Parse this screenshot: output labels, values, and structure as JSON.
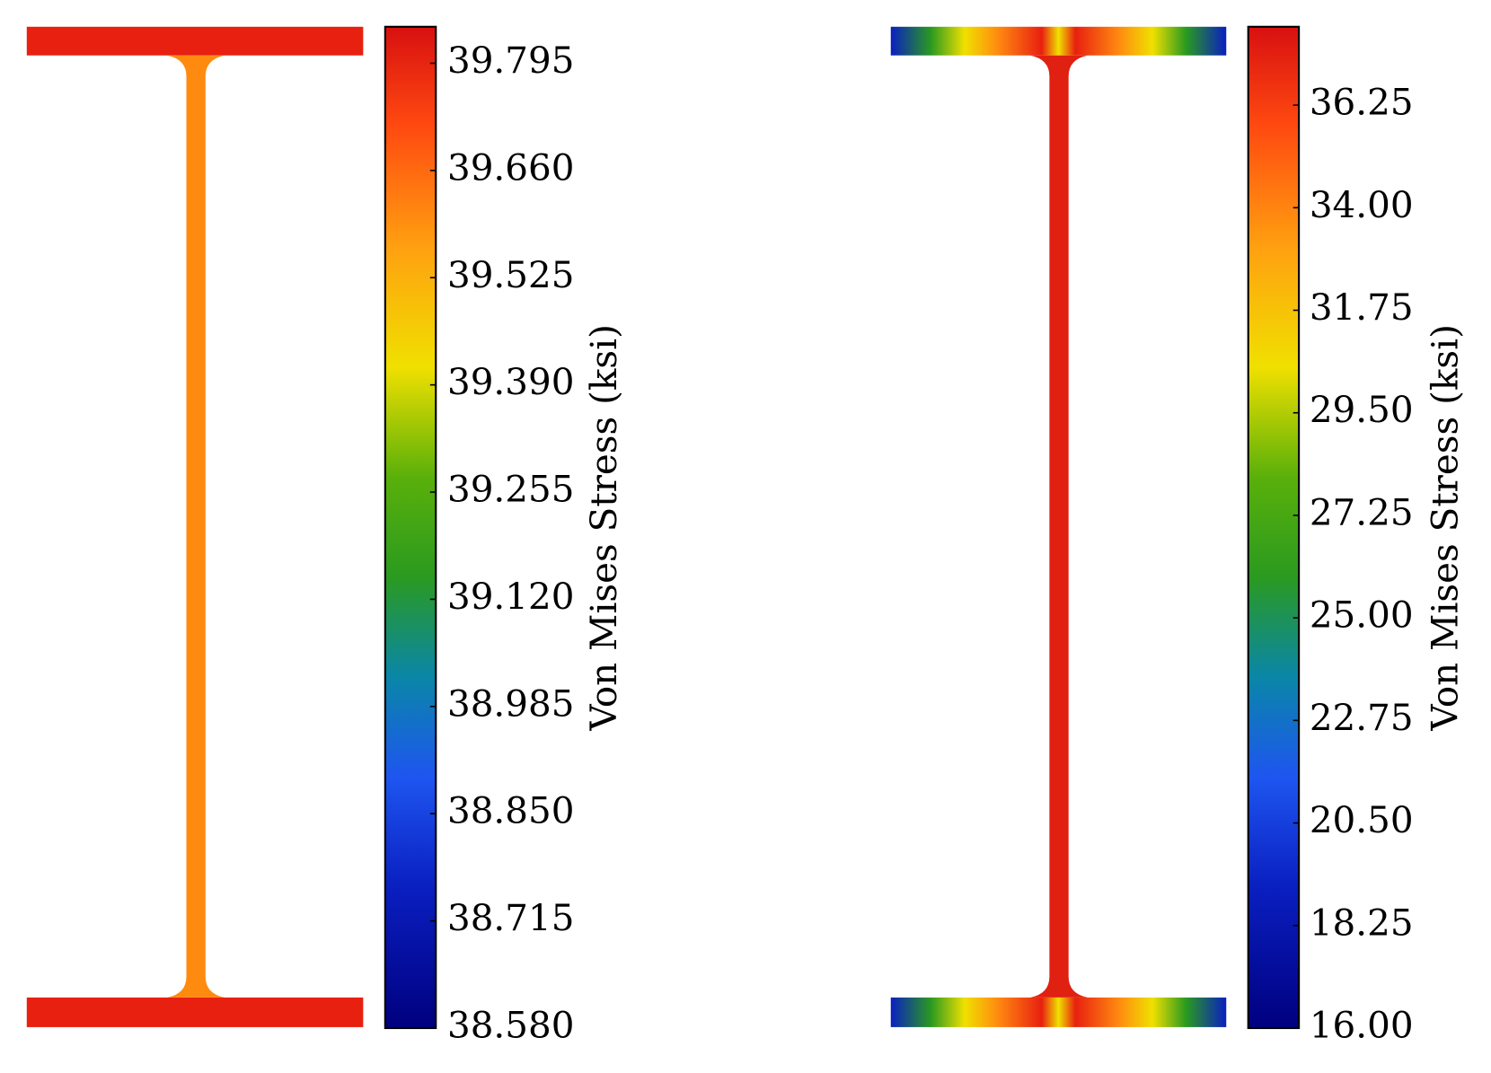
{
  "chart_data": [
    {
      "type": "contour",
      "colorbar_label": "Von Mises Stress (ksi)",
      "clim": [
        38.58,
        39.841
      ],
      "cticks": [
        {
          "value": 38.58,
          "label": "38.580"
        },
        {
          "value": 38.715,
          "label": "38.715"
        },
        {
          "value": 38.85,
          "label": "38.850"
        },
        {
          "value": 38.985,
          "label": "38.985"
        },
        {
          "value": 39.12,
          "label": "39.120"
        },
        {
          "value": 39.255,
          "label": "39.255"
        },
        {
          "value": 39.39,
          "label": "39.390"
        },
        {
          "value": 39.525,
          "label": "39.525"
        },
        {
          "value": 39.66,
          "label": "39.660"
        },
        {
          "value": 39.795,
          "label": "39.795"
        }
      ]
    },
    {
      "type": "contour",
      "colorbar_label": "Von Mises Stress (ksi)",
      "clim": [
        16,
        37.97
      ],
      "cticks": [
        {
          "value": 16,
          "label": "16.00"
        },
        {
          "value": 18.25,
          "label": "18.25"
        },
        {
          "value": 20.5,
          "label": "20.50"
        },
        {
          "value": 22.75,
          "label": "22.75"
        },
        {
          "value": 25,
          "label": "25.00"
        },
        {
          "value": 27.25,
          "label": "27.25"
        },
        {
          "value": 29.5,
          "label": "29.50"
        },
        {
          "value": 31.75,
          "label": "31.75"
        },
        {
          "value": 34,
          "label": "34.00"
        },
        {
          "value": 36.25,
          "label": "36.25"
        }
      ]
    }
  ]
}
